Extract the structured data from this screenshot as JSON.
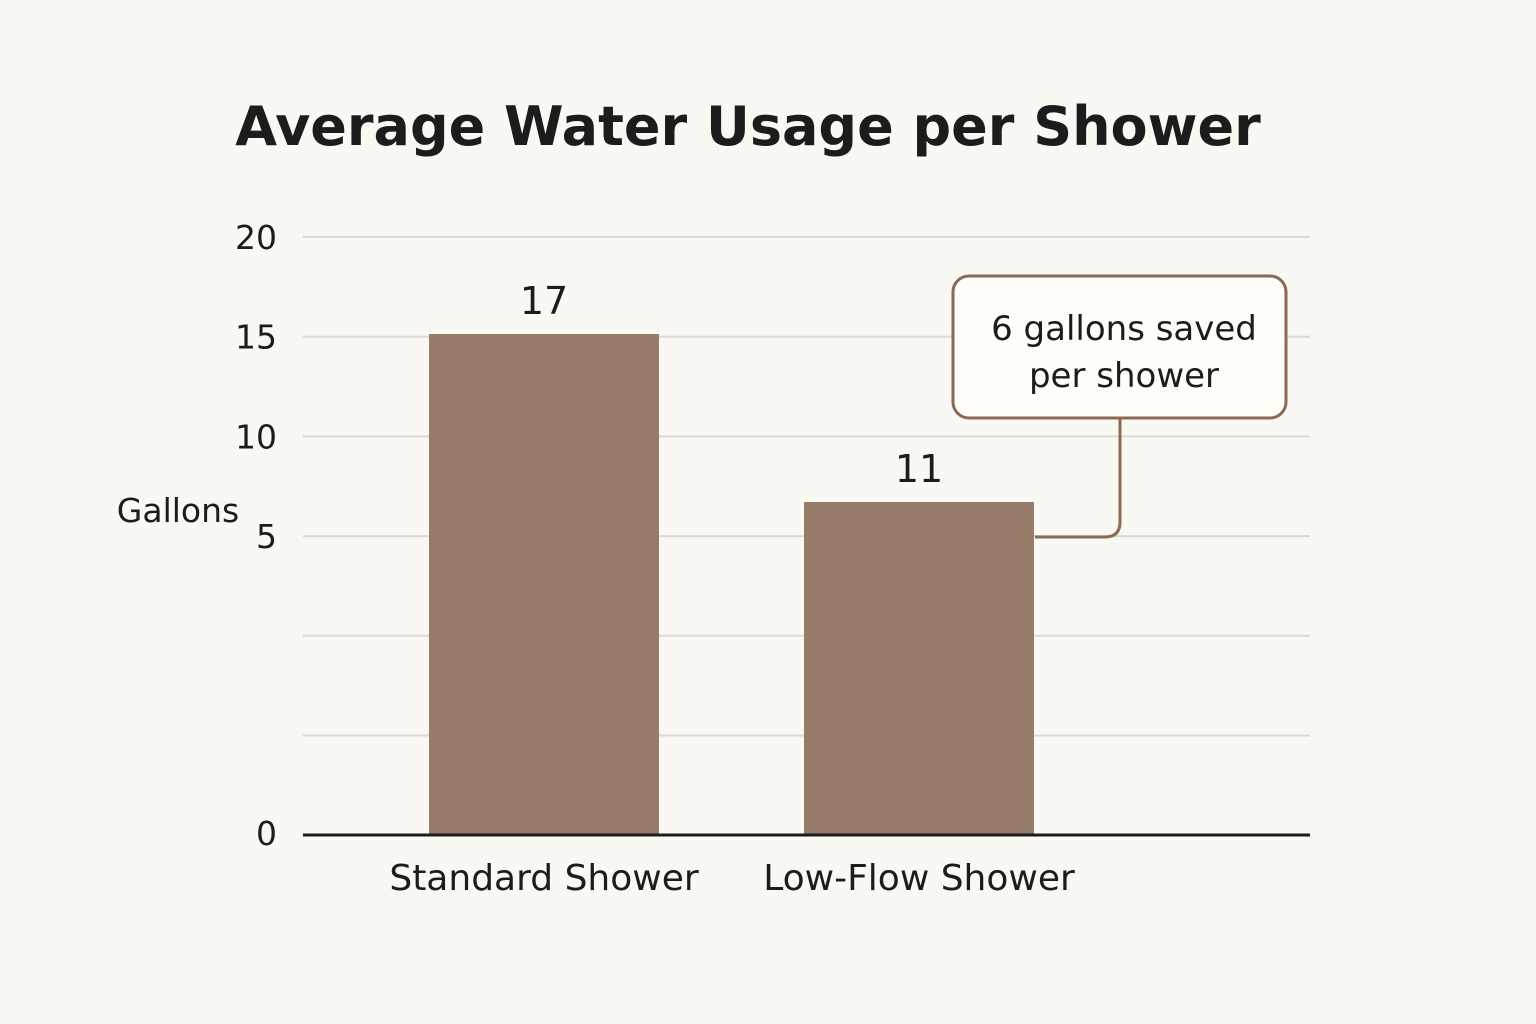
{
  "chart_data": {
    "type": "bar",
    "title": "Average Water Usage per Shower",
    "ylabel": "Gallons",
    "xlabel": "",
    "categories": [
      "Standard Shower",
      "Low-Flow Shower"
    ],
    "values": [
      17,
      11
    ],
    "data_labels": [
      "17",
      "11"
    ],
    "y_tick_labels": [
      "20",
      "15",
      "10",
      "5",
      "",
      "",
      "0"
    ],
    "gridlines": 7,
    "grid": true,
    "ylim": [
      0,
      20
    ],
    "annotation": {
      "lines": [
        "6 gallons saved",
        "per shower"
      ],
      "target_category": "Low-Flow Shower"
    },
    "colors": {
      "bar": "#967c69",
      "grid": "#dcdad5",
      "axis": "#1c1c1c",
      "annotation_border": "#8a6a55",
      "background": "#faf8f3"
    }
  }
}
